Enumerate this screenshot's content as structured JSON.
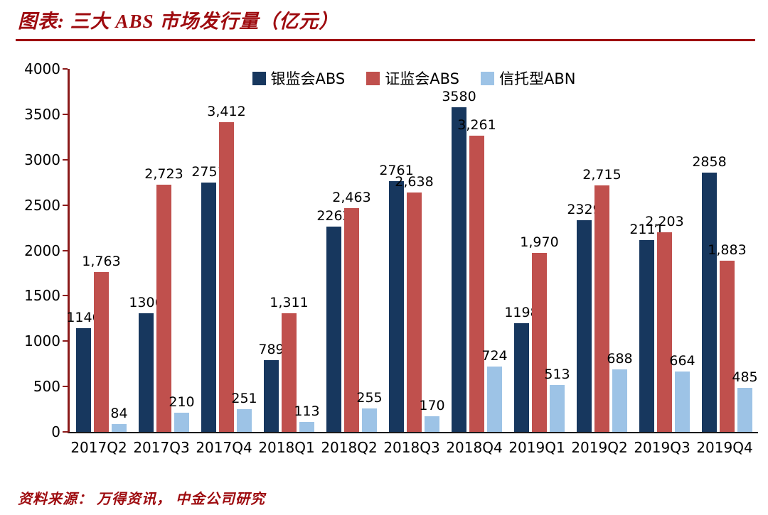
{
  "header": {
    "title": "图表: 三大 ABS 市场发行量（亿元）"
  },
  "footer": {
    "source": "资料来源： 万得资讯， 中金公司研究"
  },
  "colors": {
    "title_red": "#9e0b0f",
    "axis_red": "#8b1a1a",
    "x_axis_line": "#1a1a1a",
    "series_navy": "#17375e",
    "series_red": "#c0504d",
    "series_lightblue": "#9dc3e6"
  },
  "chart_data": {
    "type": "bar",
    "title": "图表: 三大 ABS 市场发行量（亿元）",
    "xlabel": "",
    "ylabel": "",
    "ylim": [
      0,
      4000
    ],
    "yticks": [
      0,
      500,
      1000,
      1500,
      2000,
      2500,
      3000,
      3500,
      4000
    ],
    "grid": false,
    "legend_position": "top-center-inside",
    "categories": [
      "2017Q2",
      "2017Q3",
      "2017Q4",
      "2018Q1",
      "2018Q2",
      "2018Q3",
      "2018Q4",
      "2019Q1",
      "2019Q2",
      "2019Q3",
      "2019Q4"
    ],
    "series": [
      {
        "name": "银监会ABS",
        "color": "#17375e",
        "values": [
          1146,
          1306,
          2751,
          789,
          2262,
          2761,
          3580,
          1198,
          2329,
          2111,
          2858
        ],
        "labels": [
          "1146",
          "1306",
          "2751",
          "789",
          "2262",
          "2761",
          "3580",
          "1198",
          "2329",
          "2111",
          "2858"
        ]
      },
      {
        "name": "证监会ABS",
        "color": "#c0504d",
        "values": [
          1763,
          2723,
          3412,
          1311,
          2463,
          2638,
          3261,
          1970,
          2715,
          2203,
          1883
        ],
        "labels": [
          "1,763",
          "2,723",
          "3,412",
          "1,311",
          "2,463",
          "2,638",
          "3,261",
          "1,970",
          "2,715",
          "2,203",
          "1,883"
        ]
      },
      {
        "name": "信托型ABN",
        "color": "#9dc3e6",
        "values": [
          84,
          210,
          251,
          113,
          255,
          170,
          724,
          513,
          688,
          664,
          485
        ],
        "labels": [
          "84",
          "210",
          "251",
          "113",
          "255",
          "170",
          "724",
          "513",
          "688",
          "664",
          "485"
        ]
      }
    ]
  }
}
